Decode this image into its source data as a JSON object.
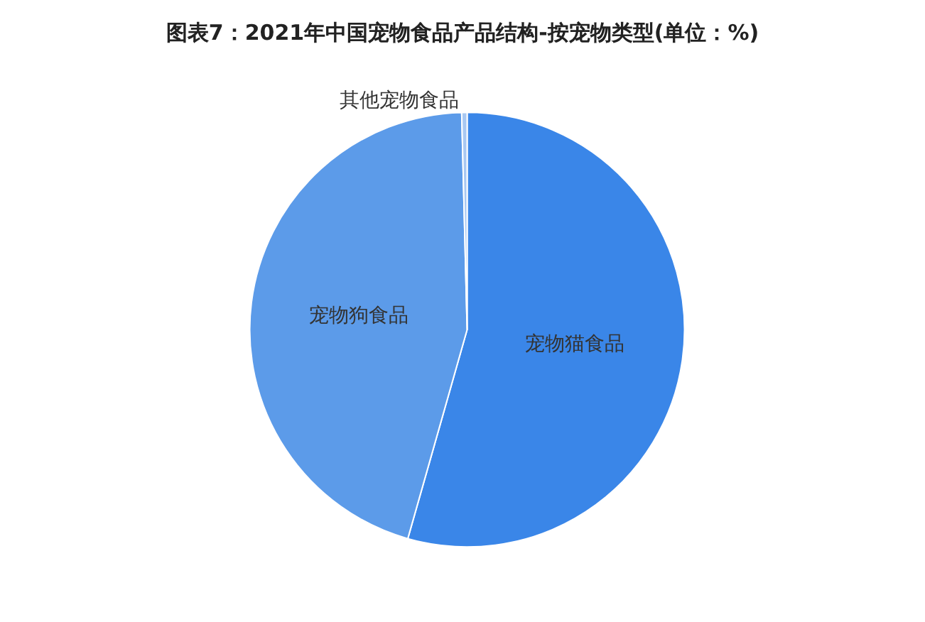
{
  "chart_data": {
    "type": "pie",
    "title": "图表7：2021年中国宠物食品产品结构-按宠物类型(单位：%)",
    "categories": [
      "宠物猫食品",
      "宠物狗食品",
      "其他宠物食品"
    ],
    "values": [
      54.4,
      45.2,
      0.4
    ],
    "colors": [
      "#3a86e8",
      "#5c9be9",
      "#a8c8f2"
    ],
    "legend": false
  }
}
